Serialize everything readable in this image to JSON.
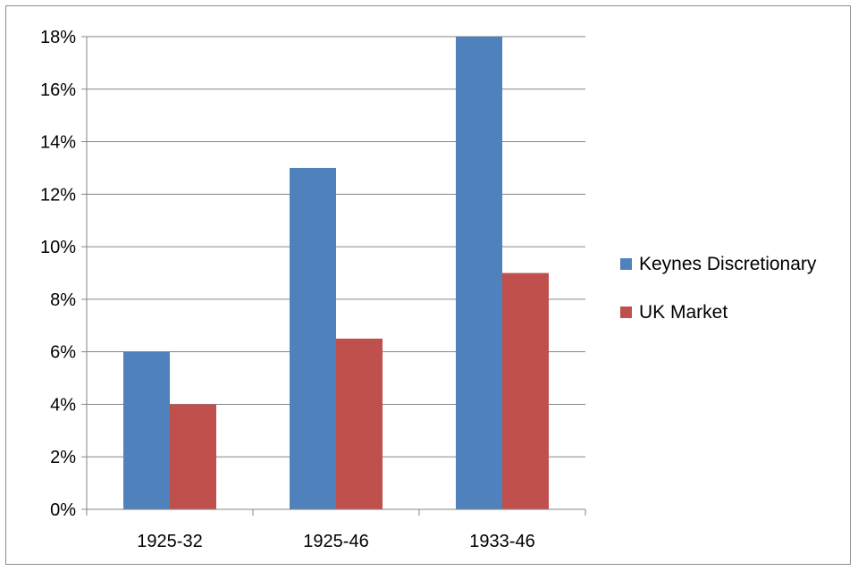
{
  "chart_data": {
    "type": "bar",
    "title": "",
    "xlabel": "",
    "ylabel": "",
    "categories": [
      "1925-32",
      "1925-46",
      "1933-46"
    ],
    "series": [
      {
        "name": "Keynes Discretionary",
        "values": [
          6,
          13,
          18
        ],
        "color": "#4f81bd"
      },
      {
        "name": "UK Market",
        "values": [
          4,
          6.5,
          9
        ],
        "color": "#c0504d"
      }
    ],
    "ylim": [
      0,
      18
    ],
    "yticks": [
      0,
      2,
      4,
      6,
      8,
      10,
      12,
      14,
      16,
      18
    ],
    "ytick_labels": [
      "0%",
      "2%",
      "4%",
      "6%",
      "8%",
      "10%",
      "12%",
      "14%",
      "16%",
      "18%"
    ],
    "grid": true,
    "legend_position": "right"
  }
}
